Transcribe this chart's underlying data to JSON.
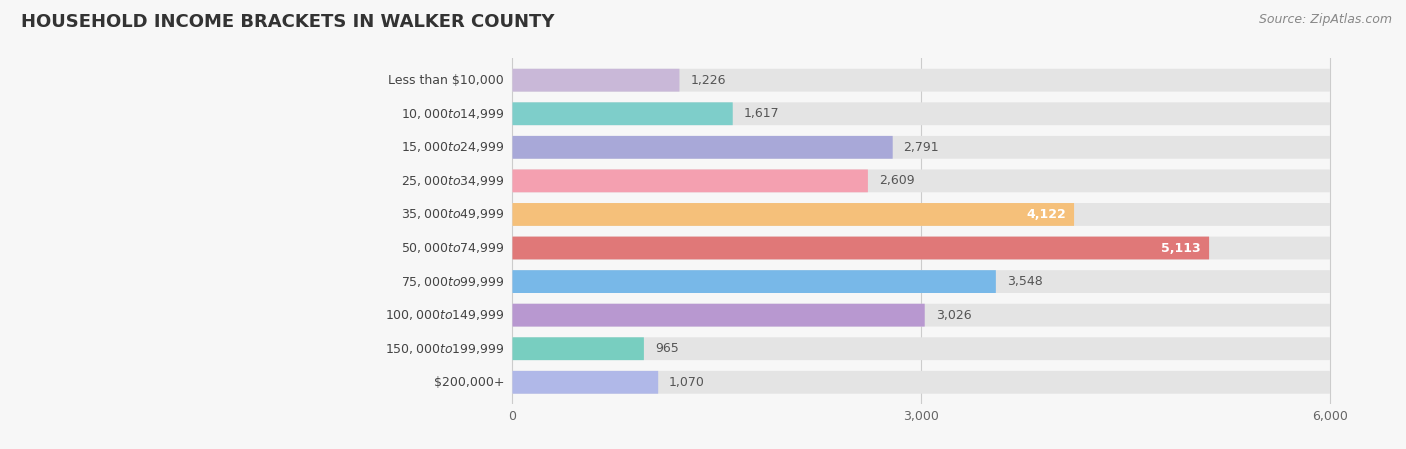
{
  "title": "HOUSEHOLD INCOME BRACKETS IN WALKER COUNTY",
  "source": "Source: ZipAtlas.com",
  "categories": [
    "Less than $10,000",
    "$10,000 to $14,999",
    "$15,000 to $24,999",
    "$25,000 to $34,999",
    "$35,000 to $49,999",
    "$50,000 to $74,999",
    "$75,000 to $99,999",
    "$100,000 to $149,999",
    "$150,000 to $199,999",
    "$200,000+"
  ],
  "values": [
    1226,
    1617,
    2791,
    2609,
    4122,
    5113,
    3548,
    3026,
    965,
    1070
  ],
  "bar_colors": [
    "#c9b8d8",
    "#7ececa",
    "#a8a8d8",
    "#f4a0b0",
    "#f5c07a",
    "#e07878",
    "#78b8e8",
    "#b898d0",
    "#78cec0",
    "#b0b8e8"
  ],
  "bar_bg_color": "#e4e4e4",
  "background_color": "#f7f7f7",
  "xlim": [
    0,
    6000
  ],
  "xticks": [
    0,
    3000,
    6000
  ],
  "title_fontsize": 13,
  "label_fontsize": 9,
  "value_fontsize": 9,
  "source_fontsize": 9
}
